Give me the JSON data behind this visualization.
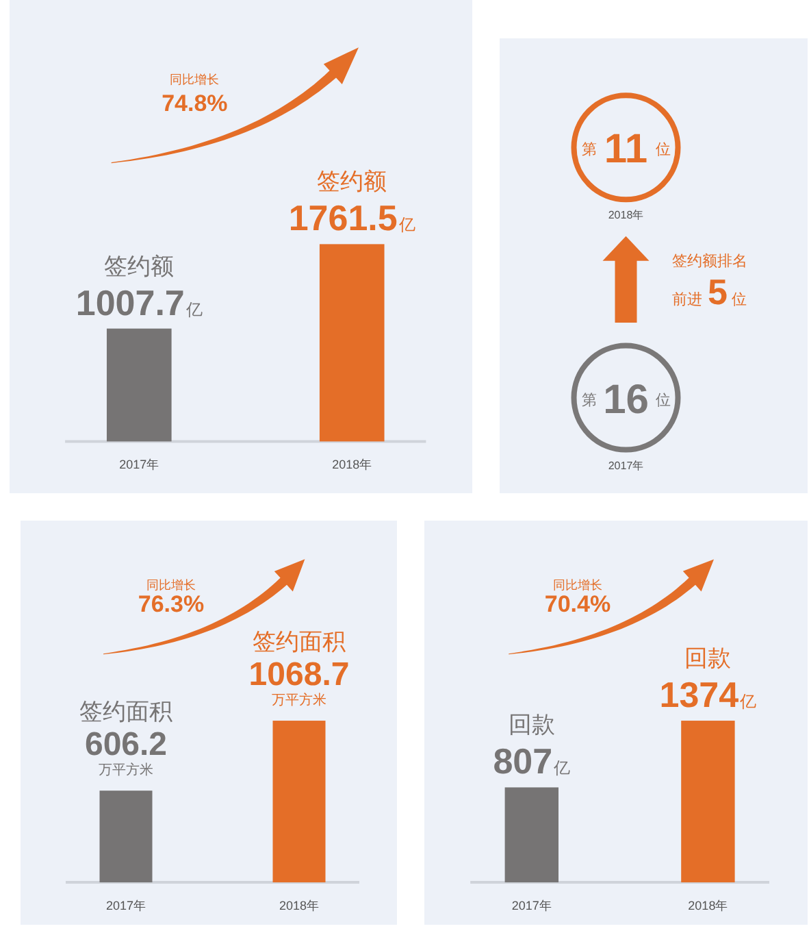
{
  "chart_data": [
    {
      "type": "bar",
      "categories": [
        "2017年",
        "2018年"
      ],
      "annotations": [
        "同比增长",
        "74.8%"
      ],
      "series": [
        {
          "name": "签约额",
          "values": [
            1007.7,
            1761.5
          ],
          "value_labels": [
            "1007.7亿",
            "1761.5亿"
          ],
          "colors": [
            "#767474",
            "#e46e28"
          ]
        }
      ]
    },
    {
      "type": "other",
      "annotations": [
        "第",
        "11",
        "位",
        "2018年",
        "签约额排名",
        "前进",
        "5",
        "位",
        "第",
        "16",
        "位",
        "2017年"
      ]
    },
    {
      "type": "bar",
      "categories": [
        "2017年",
        "2018年"
      ],
      "annotations": [
        "同比增长",
        "76.3%",
        "万平方米",
        "万平方米"
      ],
      "series": [
        {
          "name": "签约面积",
          "values": [
            606.2,
            1068.7
          ],
          "value_labels": [
            "606.2",
            "1068.7"
          ],
          "colors": [
            "#767474",
            "#e46e28"
          ]
        }
      ]
    },
    {
      "type": "bar",
      "categories": [
        "2017年",
        "2018年"
      ],
      "annotations": [
        "同比增长",
        "70.4%"
      ],
      "series": [
        {
          "name": "回款",
          "values": [
            807,
            1374
          ],
          "value_labels": [
            "807亿",
            "1374亿"
          ],
          "colors": [
            "#767474",
            "#e46e28"
          ]
        }
      ]
    }
  ]
}
